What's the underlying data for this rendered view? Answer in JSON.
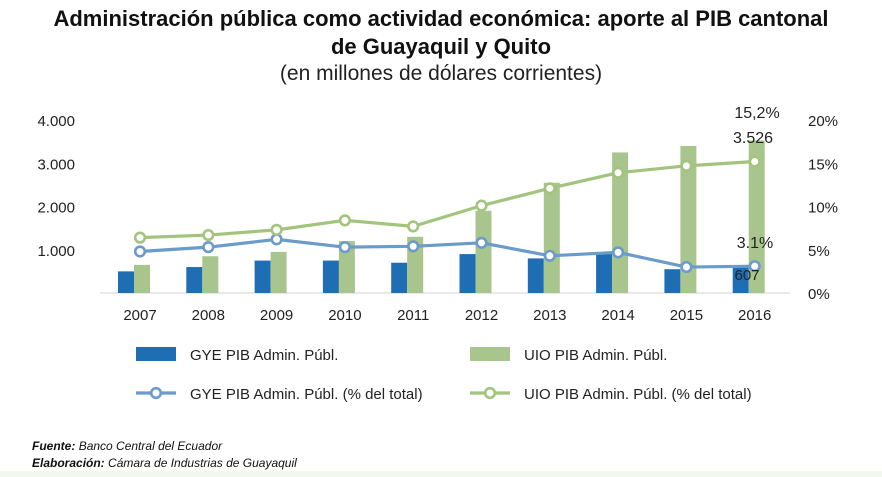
{
  "title": {
    "line1": "Administración pública como actividad económica: aporte al PIB cantonal",
    "line2": "de Guayaquil y Quito",
    "line3": "(en millones de dólares corrientes)"
  },
  "chart_data": {
    "type": "bar",
    "categories": [
      "2007",
      "2008",
      "2009",
      "2010",
      "2011",
      "2012",
      "2013",
      "2014",
      "2015",
      "2016"
    ],
    "series": [
      {
        "name": "GYE PIB Admin. Públ.",
        "kind": "bar",
        "axis": "left",
        "color": "#1f6eb4",
        "values": [
          500,
          600,
          750,
          750,
          700,
          900,
          800,
          900,
          550,
          607
        ]
      },
      {
        "name": "UIO PIB Admin. Públ.",
        "kind": "bar",
        "axis": "left",
        "color": "#a9c58e",
        "values": [
          650,
          850,
          950,
          1200,
          1300,
          1900,
          2550,
          3250,
          3400,
          3526
        ]
      },
      {
        "name": "GYE PIB Admin. Públ. (% del total)",
        "kind": "line",
        "axis": "right",
        "color": "#6b9bc9",
        "values": [
          4.8,
          5.3,
          6.2,
          5.3,
          5.4,
          5.8,
          4.3,
          4.7,
          3.0,
          3.1
        ]
      },
      {
        "name": "UIO PIB Admin. Públ. (% del total)",
        "kind": "line",
        "axis": "right",
        "color": "#a3c47c",
        "values": [
          6.4,
          6.7,
          7.3,
          8.4,
          7.7,
          10.1,
          12.1,
          13.9,
          14.7,
          15.2
        ]
      }
    ],
    "y_left": {
      "ticks": [
        "1.000",
        "2.000",
        "3.000",
        "4.000"
      ],
      "tick_values": [
        1000,
        2000,
        3000,
        4000
      ],
      "range": [
        0,
        4000
      ]
    },
    "y_right": {
      "ticks": [
        "0%",
        "5%",
        "10%",
        "15%",
        "20%"
      ],
      "tick_values": [
        0,
        5,
        10,
        15,
        20
      ],
      "range": [
        0,
        20
      ]
    },
    "annotations": {
      "uio_pct_2016": "15,2%",
      "uio_val_2016": "3.526",
      "gye_pct_2016": "3.1%",
      "gye_val_2016": "607"
    },
    "legend_position": "bottom"
  },
  "footer": {
    "source_label": "Fuente:",
    "source_text": "Banco Central del Ecuador",
    "prepared_label": "Elaboración:",
    "prepared_text": "Cámara de Industrias de Guayaquil"
  }
}
